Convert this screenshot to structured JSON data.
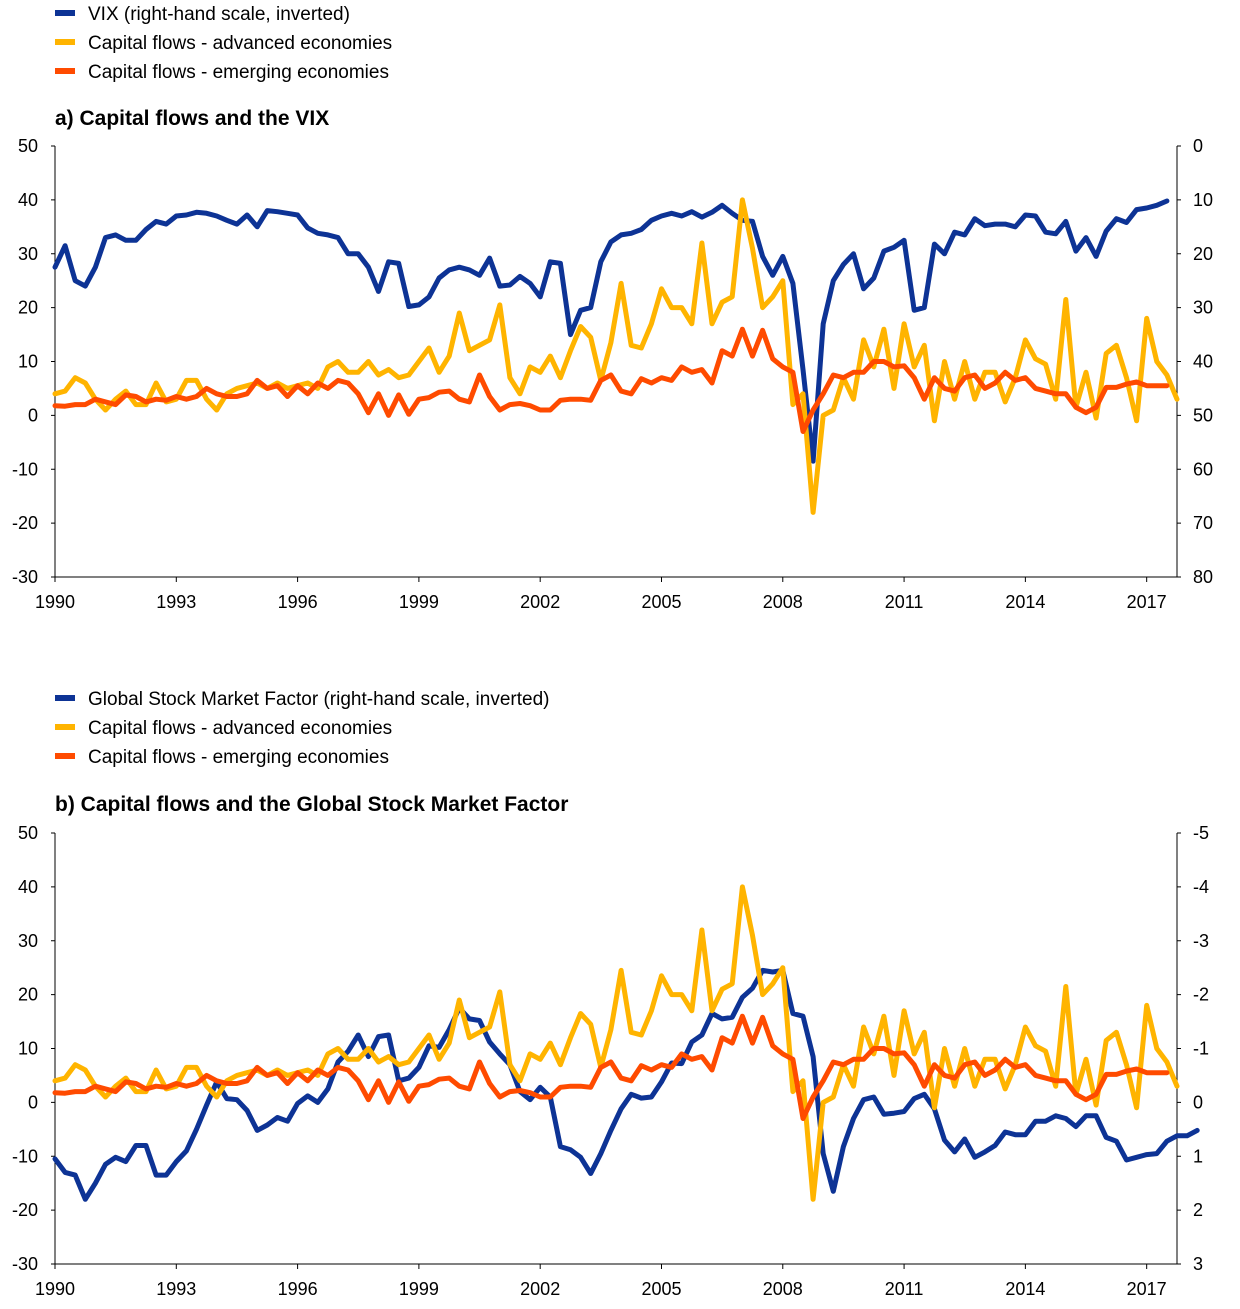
{
  "chart_data": [
    {
      "type": "line",
      "title": "a) Capital flows and the VIX",
      "legend_placement": "top-left",
      "grid": false,
      "x_ticks": [
        "1990",
        "1993",
        "1996",
        "1999",
        "2002",
        "2005",
        "2008",
        "2011",
        "2014",
        "2017"
      ],
      "xlim": [
        1990,
        2017.75
      ],
      "ylim_left": [
        -30,
        50
      ],
      "y_ticks_left": [
        "50",
        "40",
        "30",
        "20",
        "10",
        "0",
        "-10",
        "-20",
        "-30"
      ],
      "ylim_right_inverted": [
        0,
        80
      ],
      "y_ticks_right": [
        "0",
        "10",
        "20",
        "30",
        "40",
        "50",
        "60",
        "70",
        "80"
      ],
      "series": [
        {
          "name": "VIX (right-hand scale, inverted)",
          "color": "#0d3395",
          "axis": "right",
          "x_start": 1990.0,
          "x_step": 0.25,
          "values": [
            22.5,
            18.5,
            25,
            26,
            22.5,
            17,
            16.5,
            17.5,
            17.5,
            15.5,
            14,
            14.5,
            13,
            12.8,
            12.3,
            12.5,
            13,
            13.8,
            14.5,
            12.8,
            15,
            12,
            12.2,
            12.5,
            12.8,
            15.2,
            16.2,
            16.5,
            17,
            20,
            20,
            22.5,
            27,
            21.5,
            21.8,
            29.8,
            29.5,
            28,
            24.5,
            23,
            22.5,
            23,
            24,
            20.8,
            26,
            25.8,
            24.2,
            25.5,
            28,
            21.5,
            21.8,
            35,
            30.5,
            30,
            21.5,
            17.8,
            16.5,
            16.2,
            15.5,
            13.8,
            13,
            12.5,
            13,
            12.2,
            13.2,
            12.3,
            11,
            12.5,
            13.8,
            14,
            20.5,
            24,
            20.5,
            25.5,
            41.5,
            58.5,
            33,
            25,
            22,
            20,
            26.5,
            24.5,
            19.5,
            18.8,
            17.5,
            30.5,
            30,
            18.2,
            20,
            16,
            16.5,
            13.5,
            14.8,
            14.5,
            14.5,
            15,
            12.8,
            13,
            16,
            16.3,
            14,
            19.5,
            17,
            20.5,
            15.8,
            13.5,
            14.2,
            11.8,
            11.5,
            11,
            10.2
          ]
        },
        {
          "name": "Capital flows - advanced economies",
          "color": "#ffb400",
          "axis": "left",
          "x_start": 1990.0,
          "x_step": 0.25,
          "values": [
            4,
            4.5,
            7,
            6,
            3,
            1,
            3,
            4.5,
            2,
            2,
            6,
            2.5,
            3,
            6.5,
            6.5,
            3,
            1,
            4,
            5,
            5.5,
            6,
            5,
            6,
            5,
            5.5,
            6,
            5,
            9,
            10,
            8,
            8,
            10,
            7.5,
            8.5,
            7,
            7.5,
            10,
            12.5,
            8,
            11,
            19,
            12,
            13,
            14,
            20.5,
            7,
            4,
            9,
            8,
            11,
            7,
            12,
            16.5,
            14.5,
            6.5,
            13.5,
            24.5,
            13,
            12.5,
            17,
            23.5,
            20,
            20,
            17,
            32,
            17,
            21,
            22,
            40,
            31,
            20,
            22,
            25,
            2,
            4,
            -18,
            0,
            1,
            7,
            3,
            14,
            9,
            16,
            5,
            17,
            9,
            13,
            -1,
            10,
            3,
            10,
            3,
            8,
            8,
            2.5,
            7,
            14,
            10.5,
            9.5,
            3,
            21.5,
            1.5,
            8,
            -0.5,
            11.5,
            13,
            7,
            -1,
            18,
            10,
            7.5,
            3
          ]
        },
        {
          "name": "Capital flows - emerging economies",
          "color": "#ff4b00",
          "axis": "left",
          "x_start": 1990.0,
          "x_step": 0.25,
          "values": [
            1.8,
            1.7,
            2,
            2,
            3,
            2.5,
            2,
            3.8,
            3.5,
            2.5,
            3,
            2.8,
            3.5,
            3,
            3.5,
            5,
            4,
            3.5,
            3.5,
            4,
            6.5,
            5,
            5.5,
            3.5,
            5.5,
            4,
            6,
            5,
            6.5,
            6,
            4,
            0.5,
            4,
            0,
            3.8,
            0.2,
            3,
            3.3,
            4.3,
            4.5,
            3,
            2.5,
            7.5,
            3.5,
            1,
            2,
            2.2,
            1.8,
            1,
            1,
            2.8,
            3,
            3,
            2.8,
            6.5,
            7.5,
            4.5,
            4,
            6.8,
            6,
            7,
            6.5,
            9,
            8,
            8.5,
            6,
            12,
            11,
            16,
            11,
            15.8,
            10.5,
            9,
            8,
            -3,
            1,
            4,
            7.5,
            7,
            8,
            8,
            10,
            10,
            9,
            9.2,
            7,
            3,
            7,
            5,
            4.5,
            7,
            7.5,
            5,
            6,
            8,
            6.5,
            7,
            5,
            4.5,
            4,
            4,
            1.5,
            0.5,
            1.5,
            5.2,
            5.2,
            5.8,
            6.2,
            5.5,
            5.5,
            5.5
          ]
        }
      ]
    },
    {
      "type": "line",
      "title": "b) Capital flows and the Global Stock Market Factor",
      "legend_placement": "top-left",
      "grid": false,
      "x_ticks": [
        "1990",
        "1993",
        "1996",
        "1999",
        "2002",
        "2005",
        "2008",
        "2011",
        "2014",
        "2017"
      ],
      "xlim": [
        1990,
        2017.75
      ],
      "ylim_left": [
        -30,
        50
      ],
      "y_ticks_left": [
        "50",
        "40",
        "30",
        "20",
        "10",
        "0",
        "-10",
        "-20",
        "-30"
      ],
      "ylim_right_inverted": [
        -5,
        3
      ],
      "y_ticks_right": [
        "-5",
        "-4",
        "-3",
        "-2",
        "-1",
        "0",
        "1",
        "2",
        "3"
      ],
      "series": [
        {
          "name": "Global Stock Market Factor (right-hand scale, inverted)",
          "color": "#0d3395",
          "axis": "right",
          "x_start": 1990.0,
          "x_step": 0.25,
          "values": [
            1.05,
            1.3,
            1.35,
            1.8,
            1.5,
            1.15,
            1.02,
            1.1,
            0.8,
            0.8,
            1.35,
            1.35,
            1.1,
            0.9,
            0.5,
            0.05,
            -0.38,
            -0.07,
            -0.05,
            0.15,
            0.52,
            0.42,
            0.28,
            0.35,
            0.02,
            -0.12,
            0,
            -0.25,
            -0.75,
            -0.95,
            -1.25,
            -0.85,
            -1.22,
            -1.25,
            -0.4,
            -0.45,
            -0.65,
            -1.05,
            -1.02,
            -1.35,
            -1.75,
            -1.55,
            -1.52,
            -1.12,
            -0.9,
            -0.7,
            -0.2,
            -0.05,
            -0.28,
            -0.1,
            0.82,
            0.88,
            1.02,
            1.32,
            0.95,
            0.52,
            0.12,
            -0.15,
            -0.08,
            -0.1,
            -0.38,
            -0.73,
            -0.72,
            -1.12,
            -1.25,
            -1.65,
            -1.55,
            -1.58,
            -1.95,
            -2.12,
            -2.45,
            -2.42,
            -2.45,
            -1.65,
            -1.6,
            -0.85,
            0.95,
            1.65,
            0.82,
            0.3,
            -0.05,
            -0.1,
            0.22,
            0.2,
            0.17,
            -0.07,
            -0.15,
            0.12,
            0.7,
            0.92,
            0.68,
            1.02,
            0.92,
            0.8,
            0.55,
            0.6,
            0.6,
            0.35,
            0.35,
            0.25,
            0.3,
            0.45,
            0.25,
            0.25,
            0.65,
            0.72,
            1.07,
            1.02,
            0.97,
            0.95,
            0.72,
            0.62,
            0.62,
            0.52
          ]
        },
        {
          "name": "Capital flows - advanced economies",
          "color": "#ffb400",
          "axis": "left",
          "x_start": 1990.0,
          "x_step": 0.25,
          "values": [
            4,
            4.5,
            7,
            6,
            3,
            1,
            3,
            4.5,
            2,
            2,
            6,
            2.5,
            3,
            6.5,
            6.5,
            3,
            1,
            4,
            5,
            5.5,
            6,
            5,
            6,
            5,
            5.5,
            6,
            5,
            9,
            10,
            8,
            8,
            10,
            7.5,
            8.5,
            7,
            7.5,
            10,
            12.5,
            8,
            11,
            19,
            12,
            13,
            14,
            20.5,
            7,
            4,
            9,
            8,
            11,
            7,
            12,
            16.5,
            14.5,
            6.5,
            13.5,
            24.5,
            13,
            12.5,
            17,
            23.5,
            20,
            20,
            17,
            32,
            17,
            21,
            22,
            40,
            31,
            20,
            22,
            25,
            2,
            4,
            -18,
            0,
            1,
            7,
            3,
            14,
            9,
            16,
            5,
            17,
            9,
            13,
            -1,
            10,
            3,
            10,
            3,
            8,
            8,
            2.5,
            7,
            14,
            10.5,
            9.5,
            3,
            21.5,
            1.5,
            8,
            -0.5,
            11.5,
            13,
            7,
            -1,
            18,
            10,
            7.5,
            3
          ]
        },
        {
          "name": "Capital flows - emerging economies",
          "color": "#ff4b00",
          "axis": "left",
          "x_start": 1990.0,
          "x_step": 0.25,
          "values": [
            1.8,
            1.7,
            2,
            2,
            3,
            2.5,
            2,
            3.8,
            3.5,
            2.5,
            3,
            2.8,
            3.5,
            3,
            3.5,
            5,
            4,
            3.5,
            3.5,
            4,
            6.5,
            5,
            5.5,
            3.5,
            5.5,
            4,
            6,
            5,
            6.5,
            6,
            4,
            0.5,
            4,
            0,
            3.8,
            0.2,
            3,
            3.3,
            4.3,
            4.5,
            3,
            2.5,
            7.5,
            3.5,
            1,
            2,
            2.2,
            1.8,
            1,
            1,
            2.8,
            3,
            3,
            2.8,
            6.5,
            7.5,
            4.5,
            4,
            6.8,
            6,
            7,
            6.5,
            9,
            8,
            8.5,
            6,
            12,
            11,
            16,
            11,
            15.8,
            10.5,
            9,
            8,
            -3,
            1,
            4,
            7.5,
            7,
            8,
            8,
            10,
            10,
            9,
            9.2,
            7,
            3,
            7,
            5,
            4.5,
            7,
            7.5,
            5,
            6,
            8,
            6.5,
            7,
            5,
            4.5,
            4,
            4,
            1.5,
            0.5,
            1.5,
            5.2,
            5.2,
            5.8,
            6.2,
            5.5,
            5.5,
            5.5
          ]
        }
      ]
    }
  ]
}
